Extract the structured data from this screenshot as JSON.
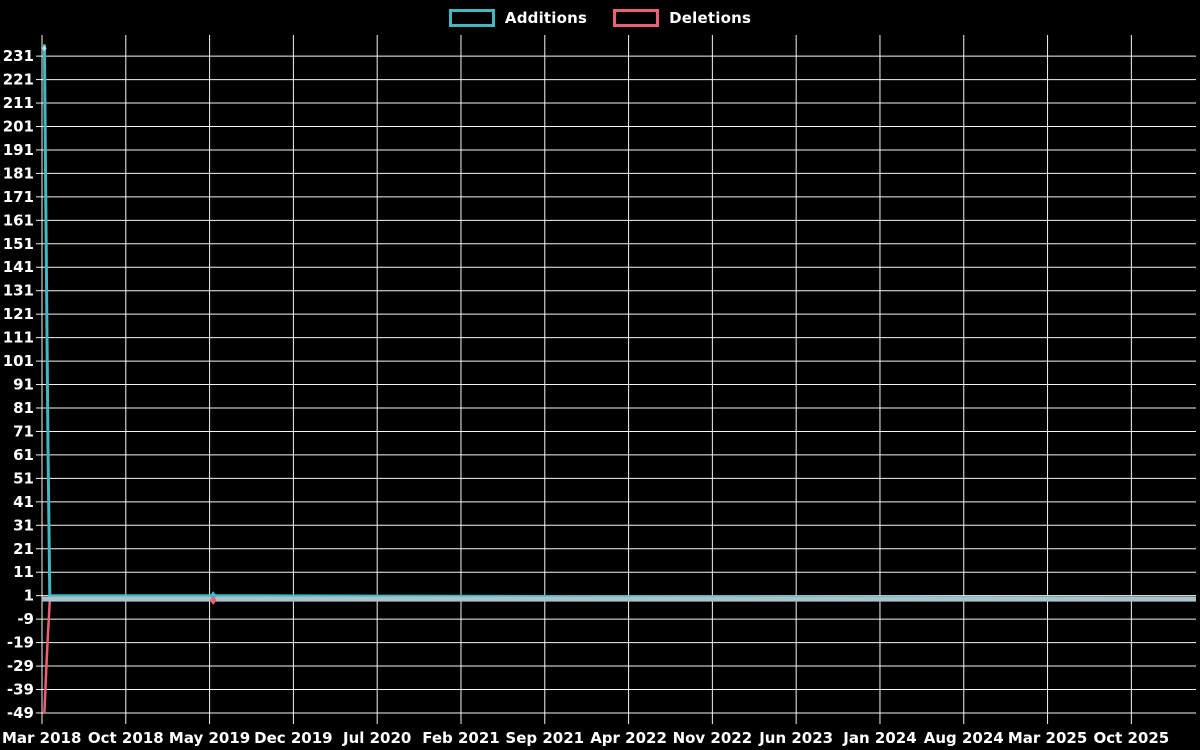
{
  "legend": {
    "additions_label": "Additions",
    "deletions_label": "Deletions"
  },
  "colors": {
    "background": "#000000",
    "grid": "#f5f5f5",
    "text": "#ffffff",
    "additions": "#43b7c2",
    "deletions": "#ec5f76",
    "additions_peak_marker": "#a5e9ed",
    "baseline_band": "#a9c3cb"
  },
  "chart_data": {
    "type": "line",
    "title": "",
    "xlabel": "",
    "ylabel": "",
    "legend_position": "top-center",
    "grid": true,
    "x_tick_labels": [
      "Mar 2018",
      "Oct 2018",
      "May 2019",
      "Dec 2019",
      "Jul 2020",
      "Feb 2021",
      "Sep 2021",
      "Apr 2022",
      "Nov 2022",
      "Jun 2023",
      "Jan 2024",
      "Aug 2024",
      "Mar 2025",
      "Oct 2025"
    ],
    "x_tick_months": [
      0,
      7,
      14,
      21,
      28,
      35,
      42,
      49,
      56,
      63,
      70,
      77,
      84,
      91
    ],
    "xlim_months": [
      0,
      96.4
    ],
    "y_ticks": [
      231,
      221,
      211,
      201,
      191,
      181,
      171,
      161,
      151,
      141,
      131,
      121,
      111,
      101,
      91,
      81,
      71,
      61,
      51,
      41,
      31,
      21,
      11,
      1,
      -9,
      -19,
      -29,
      -39,
      -49
    ],
    "ylim": [
      -53.7,
      240
    ],
    "baseline_value": 0,
    "series": [
      {
        "name": "Additions",
        "color": "#43b7c2",
        "stroke_width": 3,
        "points": [
          [
            0.2,
            236
          ],
          [
            0.35,
            150
          ],
          [
            0.5,
            64
          ],
          [
            0.65,
            1
          ],
          [
            14.3,
            1
          ],
          [
            96.4,
            0
          ]
        ],
        "markers": [
          [
            14.3,
            1
          ]
        ],
        "peak_marker": [
          0.2,
          236
        ]
      },
      {
        "name": "Deletions",
        "color": "#ec5f76",
        "stroke_width": 2.5,
        "points": [
          [
            0.2,
            -49
          ],
          [
            0.35,
            -31
          ],
          [
            0.5,
            -15
          ],
          [
            0.65,
            -1
          ],
          [
            14.3,
            -1
          ],
          [
            96.4,
            -1
          ]
        ],
        "markers": [
          [
            14.3,
            -1
          ]
        ],
        "peak_marker": null
      }
    ]
  }
}
